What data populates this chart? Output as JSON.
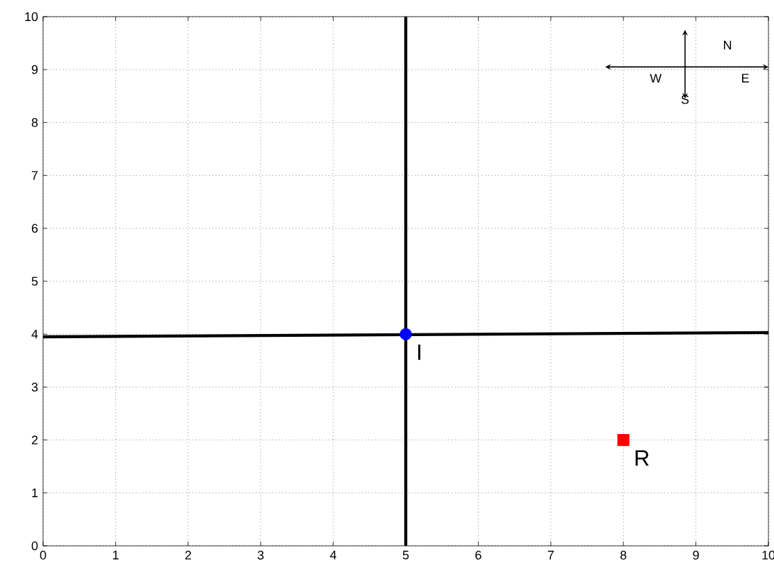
{
  "chart_data": {
    "type": "line",
    "xlim": [
      0,
      10
    ],
    "ylim": [
      0,
      10
    ],
    "xticks": [
      0,
      1,
      2,
      3,
      4,
      5,
      6,
      7,
      8,
      9,
      10
    ],
    "yticks": [
      0,
      1,
      2,
      3,
      4,
      5,
      6,
      7,
      8,
      9,
      10
    ],
    "grid": true,
    "series": [
      {
        "color": "#000000",
        "x": [
          5,
          5
        ],
        "values": [
          0,
          10
        ],
        "marker": "none"
      },
      {
        "color": "#000000",
        "x": [
          0,
          10
        ],
        "values": [
          3.95,
          4.03
        ],
        "marker": "none"
      },
      {
        "type": "scatter",
        "color": "#0000ff",
        "x": [
          5
        ],
        "values": [
          4
        ],
        "marker": "circle"
      },
      {
        "type": "scatter",
        "color": "#ff0000",
        "x": [
          8
        ],
        "values": [
          2
        ],
        "marker": "square"
      }
    ],
    "annotations": [
      {
        "text": "I",
        "x": 5,
        "y": 4
      },
      {
        "text": "R",
        "x": 8,
        "y": 2
      },
      "N",
      "E",
      "S",
      "W"
    ]
  }
}
